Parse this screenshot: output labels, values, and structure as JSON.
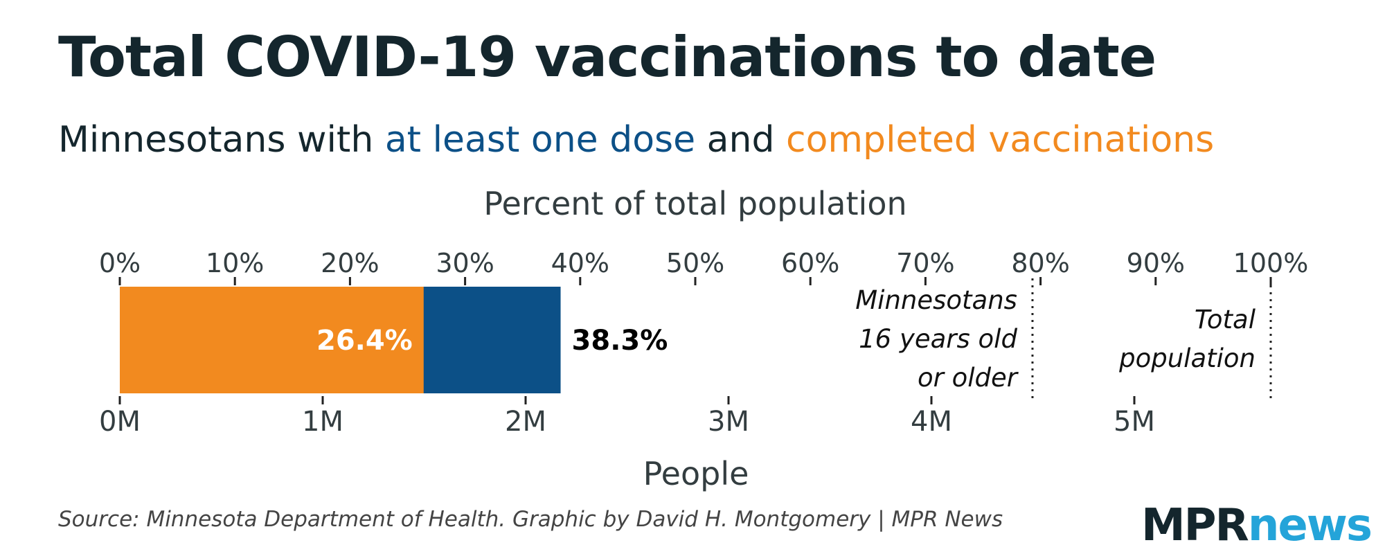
{
  "header": {
    "title": "Total COVID-19 vaccinations to date",
    "subtitle_prefix": "Minnesotans with ",
    "subtitle_blue": "at least one dose",
    "subtitle_mid": " and ",
    "subtitle_orange": "completed vaccinations"
  },
  "chart_data": {
    "type": "bar",
    "orientation": "horizontal",
    "stacked_overlay": true,
    "top_axis": {
      "label": "Percent of total population",
      "ticks": [
        "0%",
        "10%",
        "20%",
        "30%",
        "40%",
        "50%",
        "60%",
        "70%",
        "80%",
        "90%",
        "100%"
      ],
      "range": [
        0,
        100
      ]
    },
    "bottom_axis": {
      "label": "People",
      "ticks": [
        "0M",
        "1M",
        "2M",
        "3M",
        "4M",
        "5M"
      ],
      "range_millions": [
        0,
        5.7
      ]
    },
    "series": [
      {
        "name": "at least one dose",
        "value_percent": 38.3,
        "label": "38.3%",
        "color": "#0c5087"
      },
      {
        "name": "completed vaccinations",
        "value_percent": 26.4,
        "label": "26.4%",
        "color": "#f28a1f"
      }
    ],
    "reference_lines": [
      {
        "value_percent": 79.3,
        "label": [
          "Minnesotans",
          "16 years old",
          "or older"
        ]
      },
      {
        "value_percent": 100,
        "label": [
          "Total",
          "population"
        ]
      }
    ]
  },
  "footer": {
    "source": "Source: Minnesota Department of Health. Graphic by David H. Montgomery | MPR News",
    "logo_mpr": "MPR",
    "logo_news": "news"
  }
}
